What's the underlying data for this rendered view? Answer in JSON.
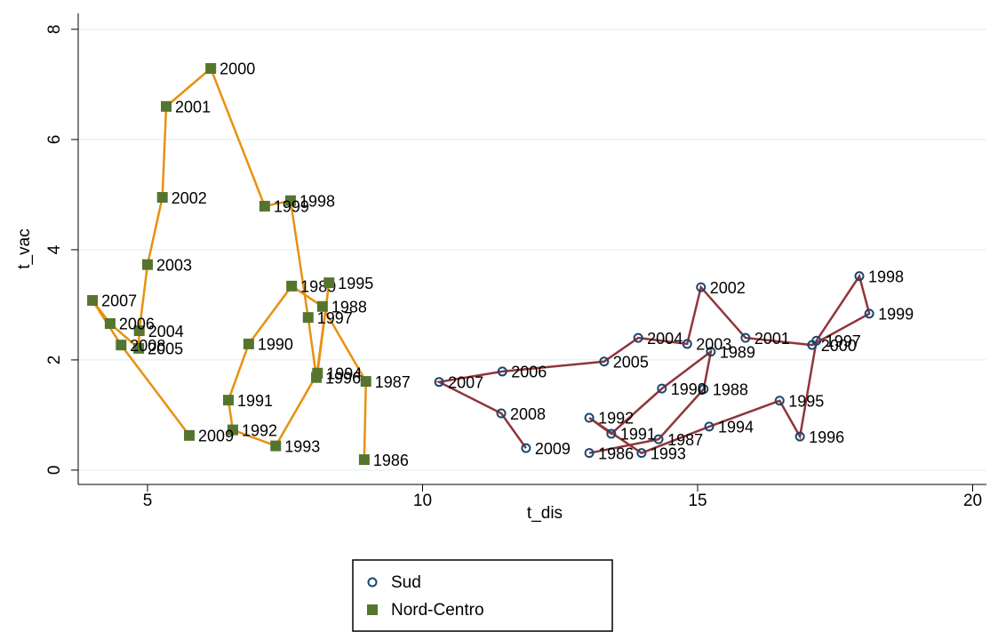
{
  "chart_data": {
    "type": "connected-scatter",
    "x_label": "t_dis",
    "y_label": "t_vac",
    "xlim": [
      3.74,
      20.25
    ],
    "xticks": [
      5,
      10,
      15,
      20
    ],
    "ylim": [
      -0.26,
      8.29
    ],
    "yticks": [
      0,
      2,
      4,
      6,
      8
    ],
    "grid": true,
    "legend": "bottom",
    "series": [
      {
        "name": "Sud",
        "color": "#1a476f",
        "line_color": "#90353b",
        "marker": "circle",
        "labels": [
          "1986",
          "1987",
          "1988",
          "1989",
          "1990",
          "1991",
          "1992",
          "1993",
          "1994",
          "1995",
          "1996",
          "1997",
          "1998",
          "1999",
          "2000",
          "2001",
          "2002",
          "2003",
          "2004",
          "2005",
          "2006",
          "2007",
          "2008",
          "2009"
        ],
        "x": [
          13.03,
          14.29,
          15.11,
          15.24,
          14.35,
          13.43,
          13.03,
          13.98,
          15.21,
          16.49,
          16.86,
          17.16,
          17.94,
          18.12,
          17.08,
          15.87,
          15.06,
          14.81,
          13.92,
          13.3,
          11.45,
          10.3,
          11.43,
          11.88
        ],
        "y": [
          0.31,
          0.56,
          1.47,
          2.15,
          1.48,
          0.66,
          0.95,
          0.31,
          0.79,
          1.26,
          0.61,
          2.35,
          3.52,
          2.84,
          2.27,
          2.4,
          3.32,
          2.29,
          2.4,
          1.97,
          1.79,
          1.6,
          1.03,
          0.4
        ]
      },
      {
        "name": "Nord-Centro",
        "color": "#55752f",
        "line_color": "#e8900f",
        "marker": "square",
        "labels": [
          "1986",
          "1987",
          "1988",
          "1989",
          "1990",
          "1991",
          "1992",
          "1993",
          "1994",
          "1995",
          "1996",
          "1997",
          "1998",
          "1999",
          "2000",
          "2001",
          "2002",
          "2003",
          "2004",
          "2005",
          "2006",
          "2007",
          "2008",
          "2009"
        ],
        "x": [
          8.94,
          8.97,
          8.18,
          7.62,
          6.84,
          6.47,
          6.55,
          7.33,
          8.09,
          8.3,
          8.07,
          7.92,
          7.6,
          7.13,
          6.15,
          5.34,
          5.27,
          5.0,
          4.85,
          4.84,
          4.32,
          4.0,
          4.52,
          5.76
        ],
        "y": [
          0.19,
          1.61,
          2.97,
          3.34,
          2.29,
          1.27,
          0.73,
          0.44,
          1.76,
          3.4,
          1.68,
          2.77,
          4.89,
          4.79,
          7.29,
          6.6,
          4.95,
          3.73,
          2.53,
          2.21,
          2.66,
          3.08,
          2.27,
          0.63
        ]
      }
    ]
  }
}
